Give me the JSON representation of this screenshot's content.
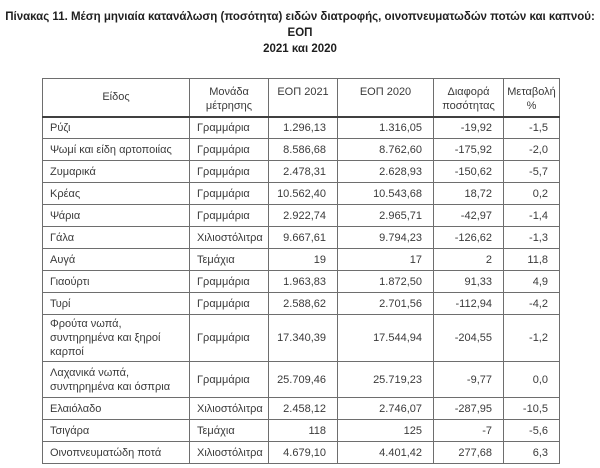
{
  "document": {
    "title_line1": "Πίνακας 11. Μέση μηνιαία κατανάλωση (ποσότητα) ειδών διατροφής, οινοπνευματωδών ποτών και καπνού: ΕΟΠ",
    "title_line2": "2021 και 2020"
  },
  "colors": {
    "background": "#ffffff",
    "text": "#3a3a3a",
    "title_text": "#1f1f1f",
    "border_outer": "#404040",
    "border_inner": "#6e6e6e"
  },
  "table": {
    "headers": [
      "Είδος",
      "Μονάδα μέτρησης",
      "ΕΟΠ 2021",
      "ΕΟΠ 2020",
      "Διαφορά ποσότητας",
      "Μεταβολή %"
    ],
    "rows": [
      {
        "name": "Ρύζι",
        "unit": "Γραμμάρια",
        "eop2021": "1.296,13",
        "eop2020": "1.316,05",
        "diff": "-19,92",
        "change": "-1,5"
      },
      {
        "name": "Ψωμί και είδη αρτοποιίας",
        "unit": "Γραμμάρια",
        "eop2021": "8.586,68",
        "eop2020": "8.762,60",
        "diff": "-175,92",
        "change": "-2,0"
      },
      {
        "name": "Ζυμαρικά",
        "unit": "Γραμμάρια",
        "eop2021": "2.478,31",
        "eop2020": "2.628,93",
        "diff": "-150,62",
        "change": "-5,7"
      },
      {
        "name": "Κρέας",
        "unit": "Γραμμάρια",
        "eop2021": "10.562,40",
        "eop2020": "10.543,68",
        "diff": "18,72",
        "change": "0,2"
      },
      {
        "name": "Ψάρια",
        "unit": "Γραμμάρια",
        "eop2021": "2.922,74",
        "eop2020": "2.965,71",
        "diff": "-42,97",
        "change": "-1,4"
      },
      {
        "name": "Γάλα",
        "unit": "Χιλιοστόλιτρα",
        "eop2021": "9.667,61",
        "eop2020": "9.794,23",
        "diff": "-126,62",
        "change": "-1,3"
      },
      {
        "name": "Αυγά",
        "unit": "Τεμάχια",
        "eop2021": "19",
        "eop2020": "17",
        "diff": "2",
        "change": "11,8"
      },
      {
        "name": "Γιαούρτι",
        "unit": "Γραμμάρια",
        "eop2021": "1.963,83",
        "eop2020": "1.872,50",
        "diff": "91,33",
        "change": "4,9"
      },
      {
        "name": "Τυρί",
        "unit": "Γραμμάρια",
        "eop2021": "2.588,62",
        "eop2020": "2.701,56",
        "diff": "-112,94",
        "change": "-4,2"
      },
      {
        "name": "Φρούτα νωπά, συντηρημένα και ξηροί καρποί",
        "unit": "Γραμμάρια",
        "eop2021": "17.340,39",
        "eop2020": "17.544,94",
        "diff": "-204,55",
        "change": "-1,2"
      },
      {
        "name": "Λαχανικά νωπά, συντηρημένα και όσπρια",
        "unit": "Γραμμάρια",
        "eop2021": "25.709,46",
        "eop2020": "25.719,23",
        "diff": "-9,77",
        "change": "0,0"
      },
      {
        "name": "Ελαιόλαδο",
        "unit": "Χιλιοστόλιτρα",
        "eop2021": "2.458,12",
        "eop2020": "2.746,07",
        "diff": "-287,95",
        "change": "-10,5"
      },
      {
        "name": "Τσιγάρα",
        "unit": "Τεμάχια",
        "eop2021": "118",
        "eop2020": "125",
        "diff": "-7",
        "change": "-5,6"
      },
      {
        "name": "Οινοπνευματώδη ποτά",
        "unit": "Χιλιοστόλιτρα",
        "eop2021": "4.679,10",
        "eop2020": "4.401,42",
        "diff": "277,68",
        "change": "6,3"
      }
    ]
  }
}
